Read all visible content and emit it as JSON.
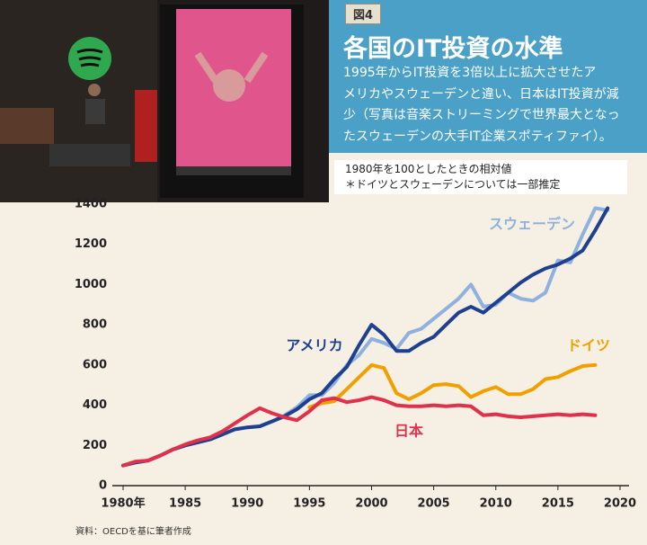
{
  "header": {
    "badge": "図4",
    "title": "各国のIT投資の水準",
    "body": [
      "1995年からIT投資を3倍以上に拡大させたア",
      "メリカやスウェーデンと違い、日本はIT投資が減",
      "少（写真は音楽ストリーミングで世界最大となっ",
      "たスウェーデンの大手IT企業スポティファイ）。"
    ]
  },
  "chart_data": {
    "type": "line",
    "notes": [
      "1980年を100としたときの相対値",
      "＊ドイツとスウェーデンについては一部推定"
    ],
    "source": "資料：OECDを基に筆者作成",
    "x": [
      1980,
      1981,
      1982,
      1983,
      1984,
      1985,
      1986,
      1987,
      1988,
      1989,
      1990,
      1991,
      1992,
      1993,
      1994,
      1995,
      1996,
      1997,
      1998,
      1999,
      2000,
      2001,
      2002,
      2003,
      2004,
      2005,
      2006,
      2007,
      2008,
      2009,
      2010,
      2011,
      2012,
      2013,
      2014,
      2015,
      2016,
      2017,
      2018,
      2019
    ],
    "series": [
      {
        "name": "スウェーデン",
        "color": "#8fb1de",
        "values": [
          100,
          115,
          125,
          150,
          180,
          200,
          215,
          230,
          255,
          280,
          290,
          295,
          320,
          350,
          390,
          450,
          450,
          510,
          600,
          650,
          730,
          710,
          680,
          760,
          780,
          830,
          880,
          930,
          1000,
          890,
          900,
          960,
          930,
          920,
          960,
          1120,
          1110,
          1250,
          1380,
          1370
        ]
      },
      {
        "name": "アメリカ",
        "color": "#1f3f8f",
        "values": [
          100,
          115,
          125,
          150,
          180,
          200,
          215,
          230,
          255,
          280,
          290,
          295,
          320,
          345,
          380,
          430,
          460,
          530,
          590,
          700,
          800,
          750,
          670,
          670,
          710,
          740,
          800,
          860,
          890,
          860,
          910,
          960,
          1010,
          1050,
          1080,
          1100,
          1130,
          1170,
          1270,
          1380
        ]
      },
      {
        "name": "ドイツ",
        "color": "#f0a000",
        "values": [
          null,
          null,
          null,
          null,
          null,
          null,
          null,
          null,
          null,
          null,
          null,
          null,
          null,
          null,
          null,
          390,
          410,
          420,
          480,
          540,
          600,
          585,
          460,
          430,
          460,
          500,
          505,
          495,
          440,
          470,
          490,
          455,
          455,
          480,
          530,
          540,
          570,
          595,
          600,
          null
        ]
      },
      {
        "name": "日本",
        "color": "#e0304a",
        "values": [
          100,
          120,
          125,
          150,
          180,
          205,
          225,
          240,
          270,
          310,
          350,
          385,
          360,
          340,
          325,
          370,
          425,
          435,
          415,
          425,
          440,
          425,
          400,
          395,
          395,
          400,
          395,
          400,
          395,
          350,
          355,
          345,
          340,
          345,
          350,
          355,
          350,
          355,
          350,
          null
        ]
      }
    ],
    "xlim": [
      1980,
      2020
    ],
    "ylim": [
      0,
      1400
    ],
    "xticks": [
      {
        "value": 1980,
        "label": "1980年"
      },
      1985,
      1990,
      1995,
      2000,
      2005,
      2010,
      2015,
      2020
    ],
    "yticks": [
      0,
      200,
      400,
      600,
      800,
      1000,
      1200,
      1400
    ]
  }
}
